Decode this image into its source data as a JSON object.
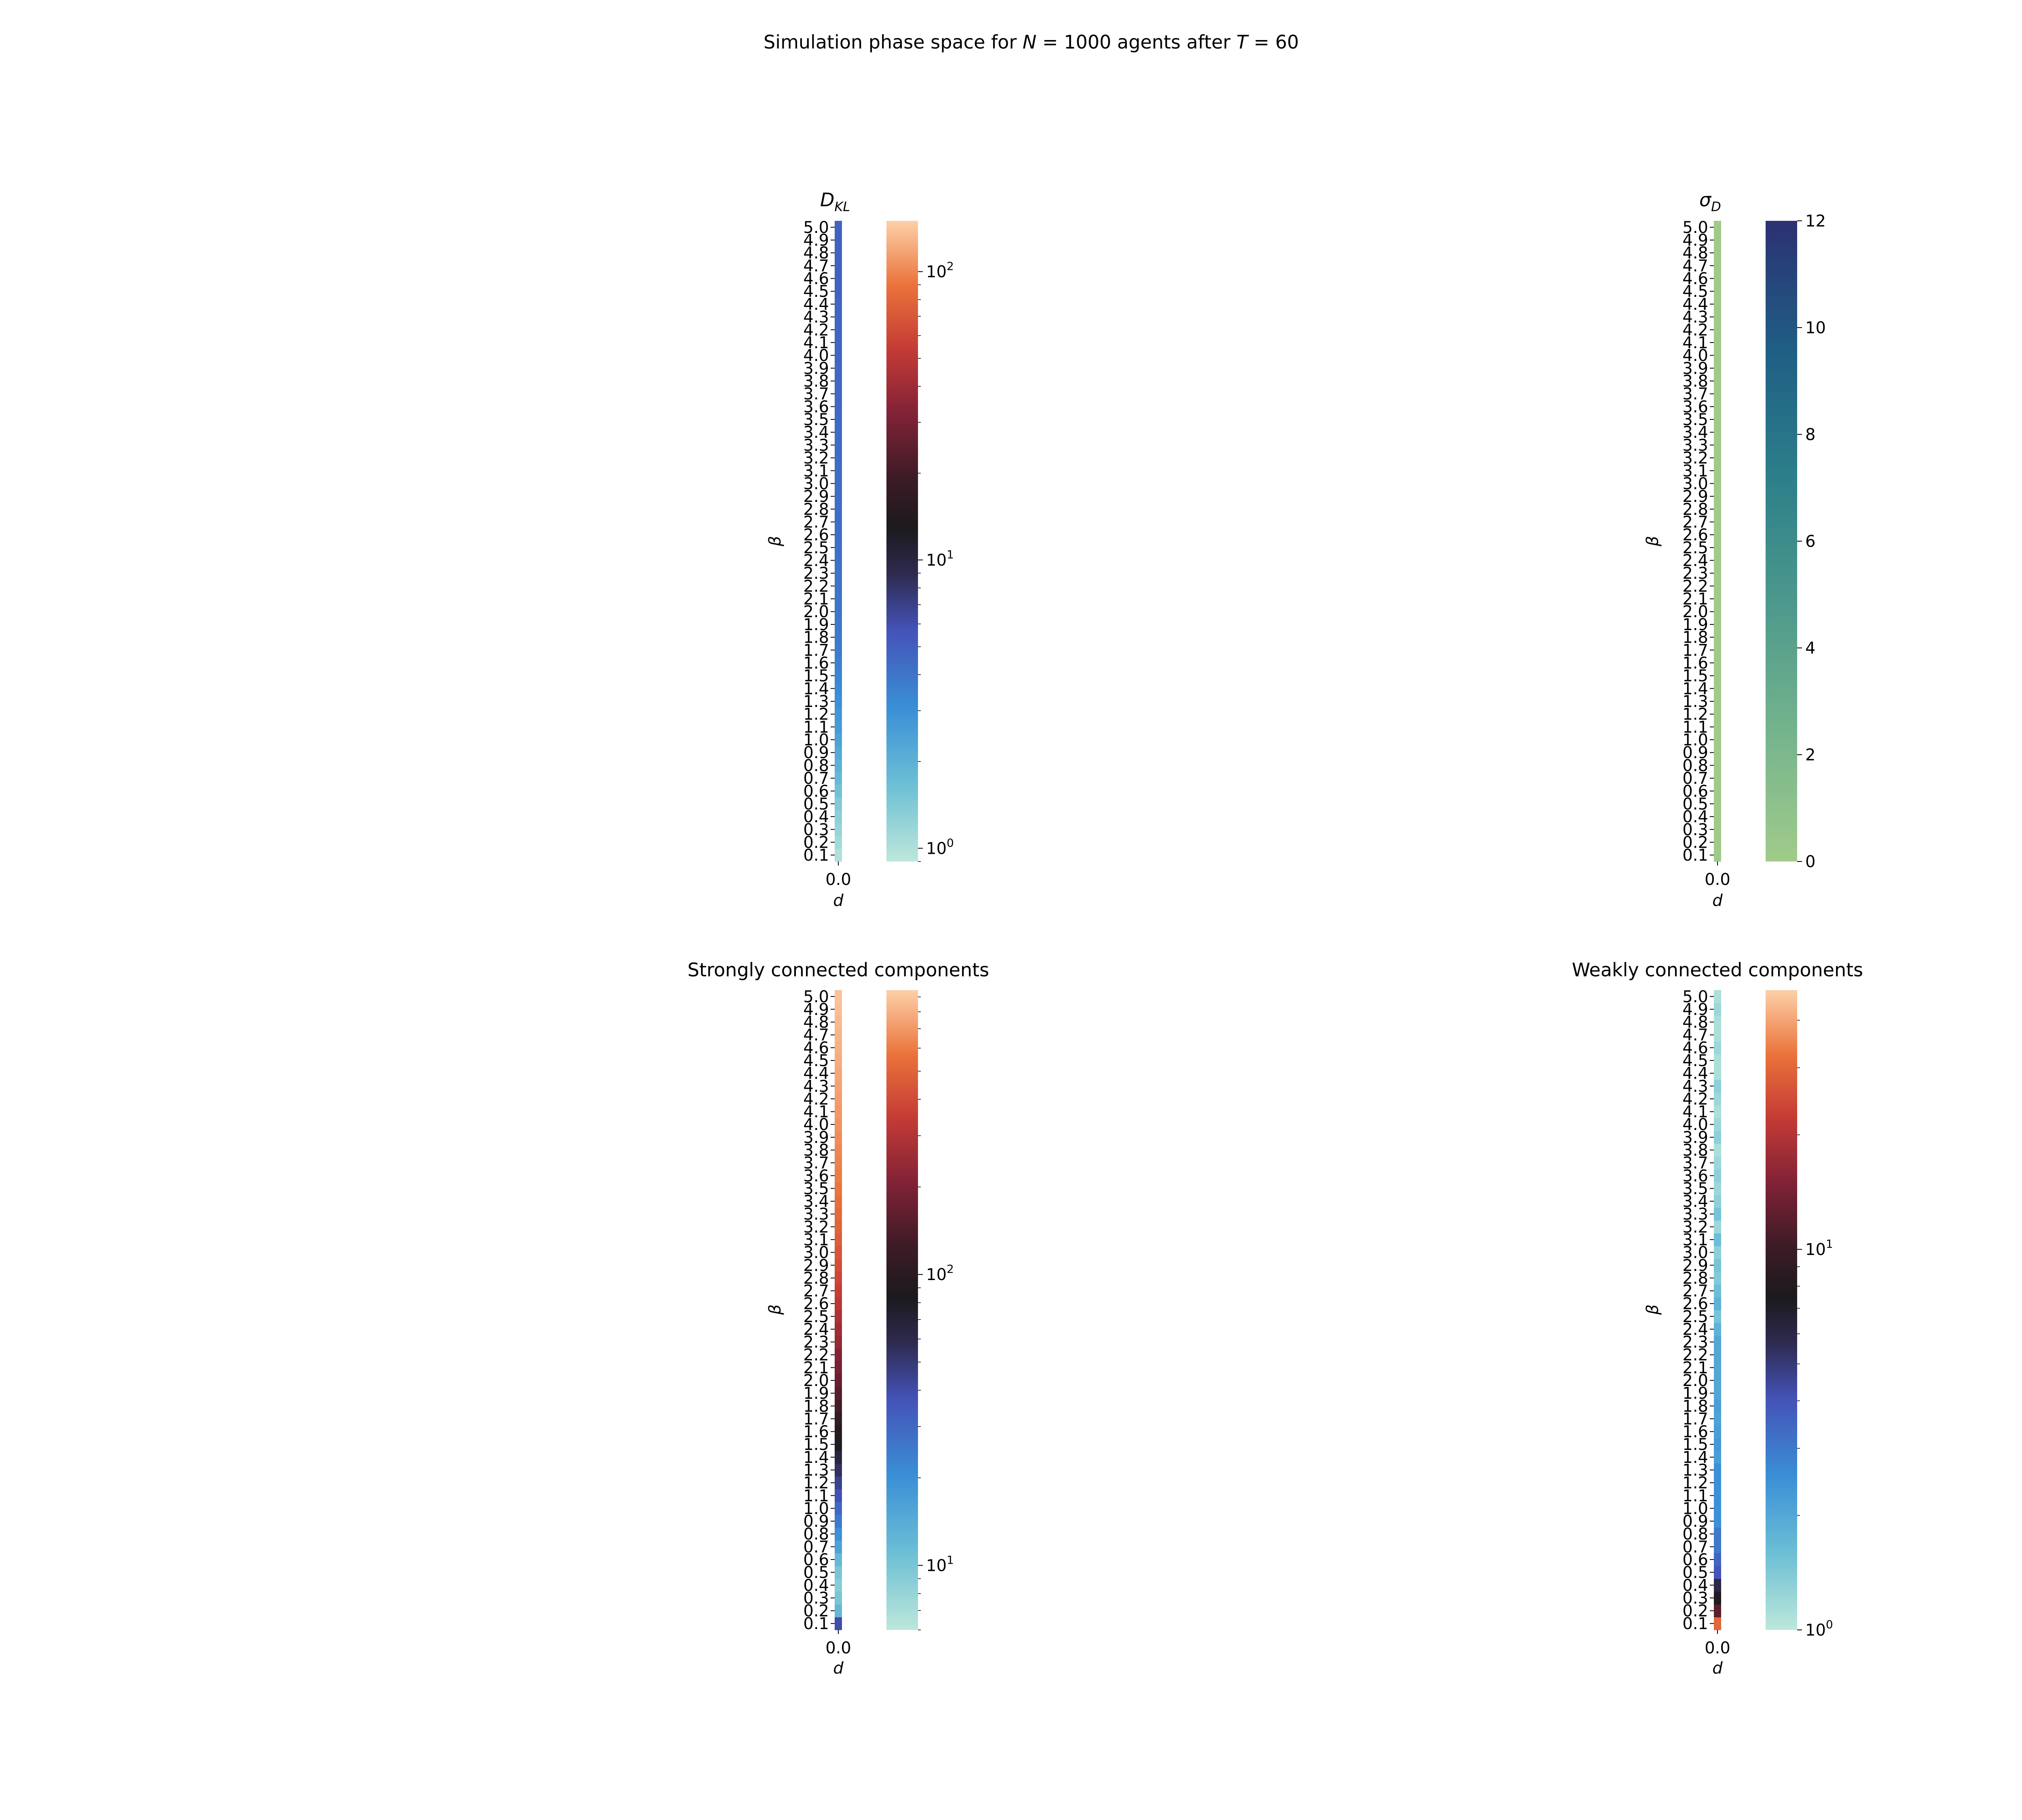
{
  "figure": {
    "title": "Simulation phase space for N = 1000 agents after T = 60",
    "title_parts": {
      "prefix": "Simulation phase space for ",
      "n_symbol": "N",
      "n_value": " = 1000",
      "middle": " agents after ",
      "t_symbol": "T",
      "t_value": " = 60"
    }
  },
  "chart_data": [
    {
      "type": "heatmap",
      "title": "D_KL",
      "title_main": "D",
      "title_sub": "KL",
      "xlabel": "d",
      "ylabel": "β",
      "x_categories": [
        "0.0"
      ],
      "y_categories": [
        "0.1",
        "0.2",
        "0.3",
        "0.4",
        "0.5",
        "0.6",
        "0.7",
        "0.8",
        "0.9",
        "1.0",
        "1.1",
        "1.2",
        "1.3",
        "1.4",
        "1.5",
        "1.6",
        "1.7",
        "1.8",
        "1.9",
        "2.0",
        "2.1",
        "2.2",
        "2.3",
        "2.4",
        "2.5",
        "2.6",
        "2.7",
        "2.8",
        "2.9",
        "3.0",
        "3.1",
        "3.2",
        "3.3",
        "3.4",
        "3.5",
        "3.6",
        "3.7",
        "3.8",
        "3.9",
        "4.0",
        "4.1",
        "4.2",
        "4.3",
        "4.4",
        "4.5",
        "4.6",
        "4.7",
        "4.8",
        "4.9",
        "5.0"
      ],
      "values": [
        1.0,
        1.1,
        1.2,
        1.3,
        1.4,
        1.6,
        1.8,
        2.0,
        2.2,
        2.4,
        2.6,
        2.8,
        3.0,
        3.2,
        3.4,
        3.6,
        3.7,
        3.8,
        3.9,
        4.0,
        4.0,
        4.1,
        4.1,
        4.2,
        4.2,
        4.3,
        4.3,
        4.3,
        4.4,
        4.4,
        4.4,
        4.5,
        4.5,
        4.5,
        4.5,
        4.6,
        4.6,
        4.6,
        4.6,
        4.7,
        4.7,
        4.7,
        4.7,
        4.7,
        4.8,
        4.8,
        4.8,
        4.8,
        4.8,
        4.8
      ],
      "colormap": "icefire",
      "colorbar": {
        "scale": "log",
        "range": [
          0.9,
          150
        ],
        "ticks": [
          1,
          10,
          100
        ],
        "tick_labels": [
          {
            "base": "10",
            "exp": "0"
          },
          {
            "base": "10",
            "exp": "1"
          },
          {
            "base": "10",
            "exp": "2"
          }
        ]
      }
    },
    {
      "type": "heatmap",
      "title": "σ_D",
      "title_main": "σ",
      "title_sub": "D",
      "xlabel": "d",
      "ylabel": "β",
      "x_categories": [
        "0.0"
      ],
      "y_categories": [
        "0.1",
        "0.2",
        "0.3",
        "0.4",
        "0.5",
        "0.6",
        "0.7",
        "0.8",
        "0.9",
        "1.0",
        "1.1",
        "1.2",
        "1.3",
        "1.4",
        "1.5",
        "1.6",
        "1.7",
        "1.8",
        "1.9",
        "2.0",
        "2.1",
        "2.2",
        "2.3",
        "2.4",
        "2.5",
        "2.6",
        "2.7",
        "2.8",
        "2.9",
        "3.0",
        "3.1",
        "3.2",
        "3.3",
        "3.4",
        "3.5",
        "3.6",
        "3.7",
        "3.8",
        "3.9",
        "4.0",
        "4.1",
        "4.2",
        "4.3",
        "4.4",
        "4.5",
        "4.6",
        "4.7",
        "4.8",
        "4.9",
        "5.0"
      ],
      "values": [
        0.1,
        0.1,
        0.1,
        0.1,
        0.1,
        0.1,
        0.1,
        0.1,
        0.1,
        0.1,
        0.1,
        0.1,
        0.1,
        0.1,
        0.1,
        0.1,
        0.1,
        0.1,
        0.1,
        0.1,
        0.1,
        0.1,
        0.1,
        0.1,
        0.1,
        0.1,
        0.1,
        0.1,
        0.1,
        0.1,
        0.1,
        0.1,
        0.1,
        0.1,
        0.1,
        0.1,
        0.1,
        0.1,
        0.1,
        0.1,
        0.1,
        0.1,
        0.1,
        0.1,
        0.1,
        0.1,
        0.1,
        0.1,
        0.1,
        0.1
      ],
      "colormap": "crest",
      "colorbar": {
        "scale": "linear",
        "range": [
          0,
          12
        ],
        "ticks": [
          0,
          2,
          4,
          6,
          8,
          10,
          12
        ],
        "tick_labels": [
          "0",
          "2",
          "4",
          "6",
          "8",
          "10",
          "12"
        ]
      }
    },
    {
      "type": "heatmap",
      "title": "Strongly connected components",
      "xlabel": "d",
      "ylabel": "β",
      "x_categories": [
        "0.0"
      ],
      "y_categories": [
        "0.1",
        "0.2",
        "0.3",
        "0.4",
        "0.5",
        "0.6",
        "0.7",
        "0.8",
        "0.9",
        "1.0",
        "1.1",
        "1.2",
        "1.3",
        "1.4",
        "1.5",
        "1.6",
        "1.7",
        "1.8",
        "1.9",
        "2.0",
        "2.1",
        "2.2",
        "2.3",
        "2.4",
        "2.5",
        "2.6",
        "2.7",
        "2.8",
        "2.9",
        "3.0",
        "3.1",
        "3.2",
        "3.3",
        "3.4",
        "3.5",
        "3.6",
        "3.7",
        "3.8",
        "3.9",
        "4.0",
        "4.1",
        "4.2",
        "4.3",
        "4.4",
        "4.5",
        "4.6",
        "4.7",
        "4.8",
        "4.9",
        "5.0"
      ],
      "values": [
        40,
        12,
        10,
        9,
        10,
        12,
        16,
        20,
        25,
        30,
        38,
        45,
        55,
        65,
        80,
        95,
        110,
        130,
        150,
        170,
        190,
        210,
        240,
        260,
        290,
        320,
        350,
        380,
        410,
        440,
        470,
        500,
        530,
        550,
        580,
        600,
        620,
        640,
        660,
        680,
        700,
        720,
        740,
        760,
        780,
        800,
        820,
        840,
        860,
        880
      ],
      "colormap": "icefire",
      "colorbar": {
        "scale": "log",
        "range": [
          6,
          950
        ],
        "ticks": [
          10,
          100
        ],
        "tick_labels": [
          {
            "base": "10",
            "exp": "1"
          },
          {
            "base": "10",
            "exp": "2"
          }
        ]
      }
    },
    {
      "type": "heatmap",
      "title": "Weakly connected components",
      "xlabel": "d",
      "ylabel": "β",
      "x_categories": [
        "0.0"
      ],
      "y_categories": [
        "0.1",
        "0.2",
        "0.3",
        "0.4",
        "0.5",
        "0.6",
        "0.7",
        "0.8",
        "0.9",
        "1.0",
        "1.1",
        "1.2",
        "1.3",
        "1.4",
        "1.5",
        "1.6",
        "1.7",
        "1.8",
        "1.9",
        "2.0",
        "2.1",
        "2.2",
        "2.3",
        "2.4",
        "2.5",
        "2.6",
        "2.7",
        "2.8",
        "2.9",
        "3.0",
        "3.1",
        "3.2",
        "3.3",
        "3.4",
        "3.5",
        "3.6",
        "3.7",
        "3.8",
        "3.9",
        "4.0",
        "4.1",
        "4.2",
        "4.3",
        "4.4",
        "4.5",
        "4.6",
        "4.7",
        "4.8",
        "4.9",
        "5.0"
      ],
      "values": [
        30,
        12,
        8,
        6,
        4,
        3.5,
        3,
        3,
        2.5,
        2.5,
        2.5,
        2.5,
        2.5,
        2.2,
        2.3,
        2.2,
        2.1,
        2.2,
        2,
        2,
        2,
        2,
        2,
        1.8,
        1.5,
        1.8,
        1.6,
        1.4,
        1.5,
        1.3,
        1.6,
        1.2,
        1.5,
        1.3,
        1.2,
        1.3,
        1.2,
        1.1,
        1.3,
        1.2,
        1.1,
        1.2,
        1.3,
        1.1,
        1.1,
        1.2,
        1.1,
        1.1,
        1.2,
        1.1
      ],
      "colormap": "icefire",
      "colorbar": {
        "scale": "log",
        "range": [
          1,
          48
        ],
        "ticks": [
          1,
          10
        ],
        "tick_labels": [
          {
            "base": "10",
            "exp": "0"
          },
          {
            "base": "10",
            "exp": "1"
          }
        ]
      }
    }
  ]
}
